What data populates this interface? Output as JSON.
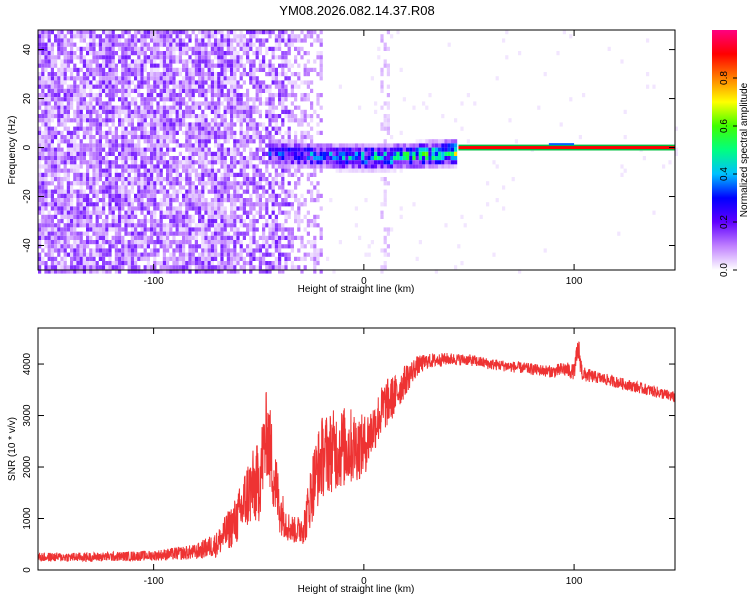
{
  "title": "YM08.2026.082.14.37.R08",
  "chart_data": [
    {
      "type": "heatmap",
      "xlabel": "Height of straight line (km)",
      "ylabel": "Frequency (Hz)",
      "xlim": [
        -155,
        148
      ],
      "ylim": [
        -50,
        48
      ],
      "xticks": [
        -100,
        0,
        100
      ],
      "yticks": [
        -40,
        -20,
        0,
        20,
        40
      ],
      "grid": false,
      "colorbar": {
        "label": "Normalized spectral amplitude",
        "range": [
          0,
          1
        ],
        "ticks": [
          0.0,
          0.2,
          0.4,
          0.6,
          0.8
        ],
        "colormap": [
          "#ffffff",
          "#c080ff",
          "#6000ff",
          "#0000ff",
          "#00c0ff",
          "#00ff80",
          "#40ff00",
          "#ffff00",
          "#ff8000",
          "#ff0000",
          "#ff0080"
        ]
      },
      "regions": [
        {
          "name": "broadband noise",
          "x": [
            -155,
            -20
          ],
          "y": [
            -50,
            48
          ],
          "amplitude": 0.1
        },
        {
          "name": "scattered line",
          "x": [
            -45,
            45
          ],
          "y": [
            -8,
            4
          ],
          "amplitude": 0.45
        },
        {
          "name": "narrow line",
          "x": [
            45,
            148
          ],
          "y": [
            -1,
            1
          ],
          "amplitude": 1.0
        }
      ]
    },
    {
      "type": "line",
      "xlabel": "Height of straight line (km)",
      "ylabel": "SNR (10 * v/v)",
      "xlim": [
        -155,
        148
      ],
      "ylim": [
        0,
        4700
      ],
      "xticks": [
        -100,
        0,
        100
      ],
      "yticks": [
        0,
        1000,
        2000,
        3000,
        4000
      ],
      "grid": false,
      "color": "#ee3333",
      "series": [
        {
          "x": [
            -155,
            -130,
            -100,
            -80,
            -70,
            -60,
            -55,
            -50,
            -46,
            -43,
            -40,
            -36,
            -32,
            -28,
            -24,
            -20,
            -16,
            -12,
            -8,
            -4,
            0,
            5,
            10,
            15,
            20,
            25,
            30,
            40,
            50,
            60,
            70,
            80,
            90,
            95,
            100,
            102,
            104,
            110,
            120,
            130,
            140,
            148
          ],
          "y": [
            250,
            250,
            280,
            350,
            500,
            1000,
            1500,
            1700,
            2700,
            1900,
            1200,
            850,
            750,
            900,
            1700,
            2200,
            2300,
            2350,
            2400,
            2400,
            2400,
            2800,
            3200,
            3400,
            3700,
            3950,
            4050,
            4100,
            4080,
            4000,
            3950,
            3900,
            3850,
            3900,
            3850,
            4300,
            3800,
            3750,
            3650,
            3550,
            3450,
            3350
          ],
          "noise": [
            90,
            90,
            100,
            150,
            250,
            500,
            700,
            800,
            900,
            800,
            500,
            300,
            250,
            400,
            700,
            800,
            800,
            800,
            800,
            700,
            600,
            500,
            500,
            400,
            300,
            200,
            150,
            120,
            110,
            110,
            110,
            110,
            120,
            150,
            150,
            300,
            150,
            120,
            110,
            110,
            110,
            110
          ]
        }
      ]
    }
  ]
}
